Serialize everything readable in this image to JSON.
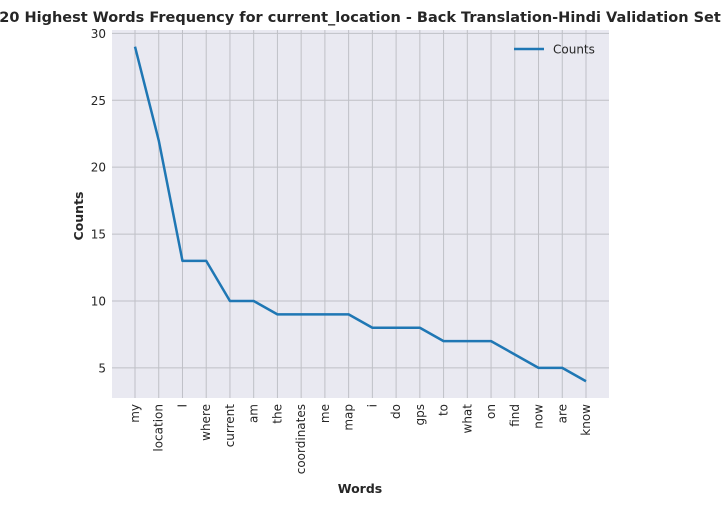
{
  "chart_data": {
    "type": "line",
    "title": "20 Highest Words Frequency for current_location - Back Translation-Hindi Validation Set",
    "xlabel": "Words",
    "ylabel": "Counts",
    "categories": [
      "my",
      "location",
      "I",
      "where",
      "current",
      "am",
      "the",
      "coordinates",
      "me",
      "map",
      "i",
      "do",
      "gps",
      "to",
      "what",
      "on",
      "find",
      "now",
      "are",
      "know"
    ],
    "series": [
      {
        "name": "Counts",
        "values": [
          29,
          22,
          13,
          13,
          10,
          10,
          9,
          9,
          9,
          9,
          8,
          8,
          8,
          7,
          7,
          7,
          6,
          5,
          5,
          4
        ],
        "color": "#1f77b4"
      }
    ],
    "yticks": [
      5,
      10,
      15,
      20,
      25,
      30
    ],
    "ylim": [
      2.75,
      30.25
    ],
    "grid": true,
    "legend": "top-right",
    "colors": {
      "plot_bg": "#e9e9f1",
      "grid": "#bfc0c6",
      "line": "#1f77b4"
    }
  }
}
